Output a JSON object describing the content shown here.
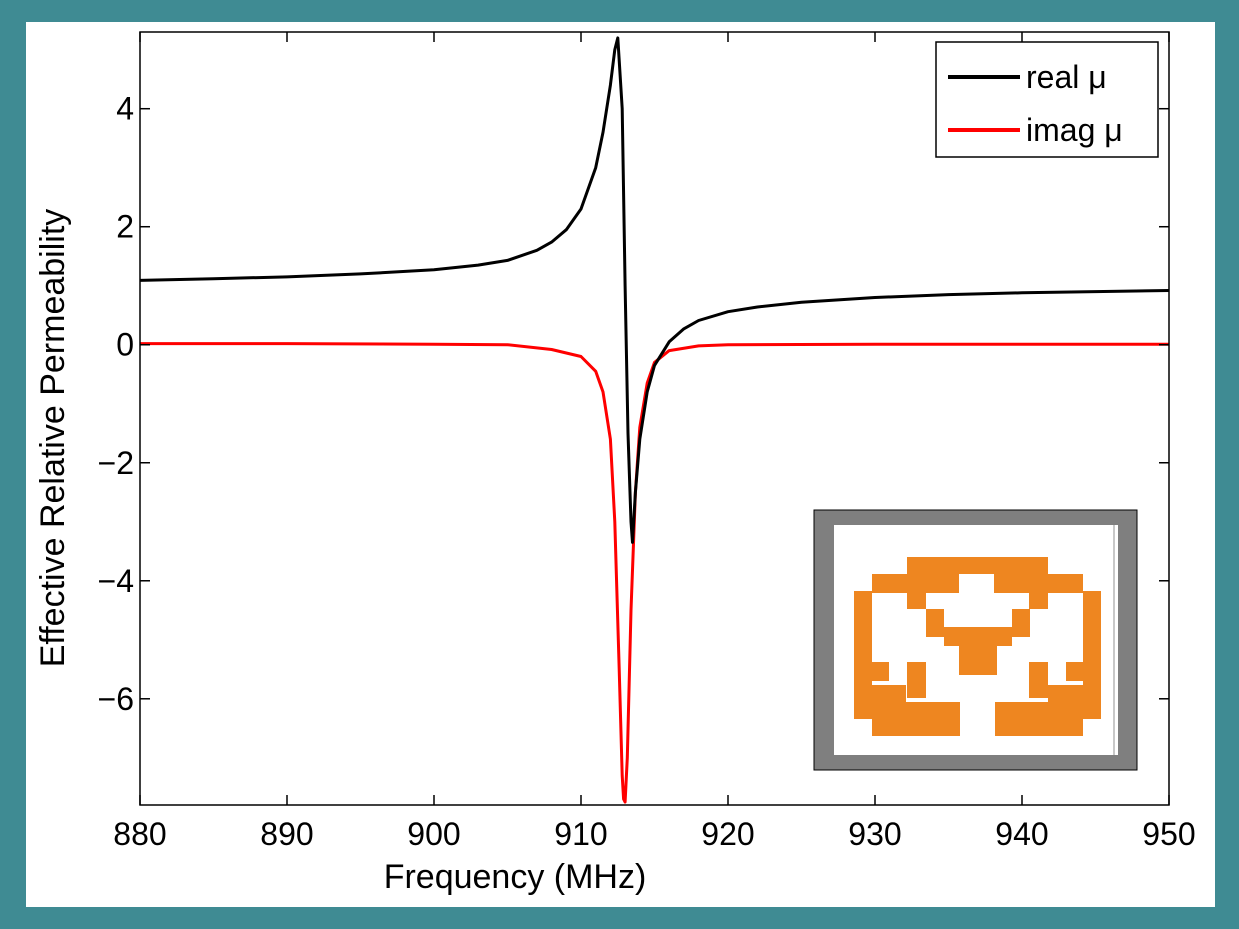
{
  "colors": {
    "frame": "#3f8b93",
    "real": "#000000",
    "imag": "#ff0000",
    "inset_border": "#7f7f7f",
    "inset_pattern": "#ee8620"
  },
  "chart_data": {
    "type": "line",
    "xlabel": "Frequency (MHz)",
    "ylabel": "Effective Relative Permeability",
    "xlim": [
      880,
      950
    ],
    "ylim": [
      -7.8,
      5.3
    ],
    "xticks": [
      "880",
      "890",
      "900",
      "910",
      "920",
      "930",
      "940",
      "950"
    ],
    "yticks": [
      "4",
      "2",
      "0",
      "−2",
      "−4",
      "−6"
    ],
    "legend_position": "top-right",
    "grid": false,
    "series": [
      {
        "name": "real μ",
        "color": "#000000",
        "points": [
          [
            880,
            1.09
          ],
          [
            885,
            1.12
          ],
          [
            890,
            1.15
          ],
          [
            895,
            1.2
          ],
          [
            900,
            1.27
          ],
          [
            903,
            1.35
          ],
          [
            905,
            1.43
          ],
          [
            907,
            1.6
          ],
          [
            908,
            1.74
          ],
          [
            909,
            1.95
          ],
          [
            910,
            2.3
          ],
          [
            911,
            3.0
          ],
          [
            911.5,
            3.6
          ],
          [
            912,
            4.4
          ],
          [
            912.3,
            5.0
          ],
          [
            912.5,
            5.2
          ],
          [
            912.8,
            4.0
          ],
          [
            913,
            1.0
          ],
          [
            913.2,
            -1.5
          ],
          [
            913.4,
            -3.0
          ],
          [
            913.5,
            -3.35
          ],
          [
            913.7,
            -2.5
          ],
          [
            914,
            -1.6
          ],
          [
            914.5,
            -0.8
          ],
          [
            915,
            -0.35
          ],
          [
            916,
            0.05
          ],
          [
            917,
            0.27
          ],
          [
            918,
            0.41
          ],
          [
            920,
            0.56
          ],
          [
            922,
            0.64
          ],
          [
            925,
            0.72
          ],
          [
            930,
            0.8
          ],
          [
            935,
            0.85
          ],
          [
            940,
            0.88
          ],
          [
            945,
            0.9
          ],
          [
            950,
            0.92
          ]
        ]
      },
      {
        "name": "imag μ",
        "color": "#ff0000",
        "points": [
          [
            880,
            0.02
          ],
          [
            890,
            0.02
          ],
          [
            900,
            0.01
          ],
          [
            905,
            0.0
          ],
          [
            908,
            -0.08
          ],
          [
            910,
            -0.2
          ],
          [
            911,
            -0.45
          ],
          [
            911.5,
            -0.8
          ],
          [
            912,
            -1.6
          ],
          [
            912.3,
            -3.0
          ],
          [
            912.6,
            -5.5
          ],
          [
            912.8,
            -7.3
          ],
          [
            912.9,
            -7.7
          ],
          [
            913,
            -7.75
          ],
          [
            913.15,
            -7.0
          ],
          [
            913.4,
            -4.5
          ],
          [
            913.7,
            -2.5
          ],
          [
            914,
            -1.4
          ],
          [
            914.5,
            -0.65
          ],
          [
            915,
            -0.3
          ],
          [
            916,
            -0.1
          ],
          [
            918,
            -0.02
          ],
          [
            920,
            0.0
          ],
          [
            930,
            0.01
          ],
          [
            940,
            0.01
          ],
          [
            950,
            0.01
          ]
        ]
      }
    ]
  }
}
